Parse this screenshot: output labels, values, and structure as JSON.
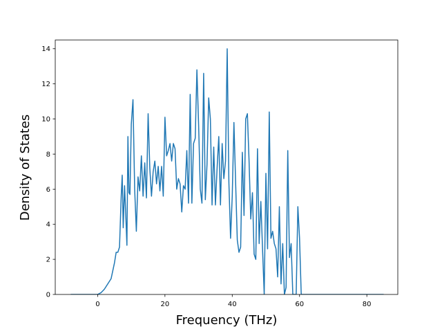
{
  "chart_data": {
    "type": "line",
    "title": "",
    "xlabel": "Frequency (THz)",
    "ylabel": "Density of States",
    "xlim": [
      -12.6,
      89.2
    ],
    "ylim": [
      0,
      14.5
    ],
    "x_ticks": [
      0,
      20,
      40,
      60,
      80
    ],
    "y_ticks": [
      0,
      2,
      4,
      6,
      8,
      10,
      12,
      14
    ],
    "grid": false,
    "legend": "none",
    "series": [
      {
        "color": "#1f77b4",
        "x": [
          -8,
          -4,
          -1,
          0,
          1,
          2,
          3,
          4,
          5,
          5.5,
          6,
          6.5,
          7,
          7.3,
          7.6,
          8,
          8.4,
          8.7,
          9,
          9.3,
          9.6,
          10,
          10.5,
          11,
          11.5,
          12,
          12.5,
          13,
          13.5,
          14,
          14.5,
          15,
          15.5,
          16,
          16.5,
          17,
          17.5,
          18,
          18.5,
          19,
          19.5,
          20,
          20.5,
          21,
          21.5,
          22,
          22.5,
          23,
          23.5,
          24,
          24.5,
          25,
          25.5,
          26,
          26.5,
          27,
          27.5,
          28,
          28.5,
          29,
          29.5,
          30,
          30.5,
          31,
          31.5,
          32,
          32.5,
          33,
          33.5,
          34,
          34.5,
          35,
          35.5,
          36,
          36.5,
          37,
          37.5,
          38,
          38.5,
          39,
          39.5,
          40,
          40.5,
          41,
          41.5,
          42,
          42.5,
          43,
          43.5,
          44,
          44.5,
          45,
          45.5,
          46,
          46.5,
          47,
          47.5,
          48,
          48.5,
          49,
          49.5,
          50,
          50.5,
          51,
          51.5,
          52,
          52.5,
          53,
          53.5,
          54,
          54.5,
          55,
          55.5,
          56,
          56.5,
          57,
          57.5,
          58,
          58.5,
          59,
          59.5,
          60,
          60.5,
          61,
          65,
          75,
          85
        ],
        "y": [
          0,
          0,
          0,
          0,
          0.1,
          0.3,
          0.6,
          0.9,
          1.8,
          2.4,
          2.4,
          2.7,
          5.6,
          6.8,
          3.8,
          6.2,
          4.3,
          2.8,
          9.0,
          5.8,
          5.7,
          9.7,
          11.1,
          6.0,
          3.6,
          6.7,
          5.9,
          7.9,
          5.6,
          7.5,
          5.5,
          10.3,
          7.2,
          5.6,
          7.0,
          7.6,
          6.3,
          7.3,
          5.9,
          7.3,
          5.6,
          10.1,
          7.9,
          8.2,
          8.6,
          7.6,
          8.6,
          8.3,
          6.0,
          6.6,
          6.3,
          4.7,
          6.2,
          6.0,
          8.2,
          5.2,
          11.4,
          5.2,
          8.6,
          8.9,
          12.8,
          9.7,
          6.0,
          5.2,
          12.6,
          5.4,
          7.4,
          11.2,
          10.0,
          5.1,
          8.4,
          5.1,
          7.2,
          9.0,
          5.1,
          8.6,
          6.6,
          7.6,
          14.0,
          6.4,
          3.2,
          5.6,
          9.8,
          6.4,
          3.1,
          2.4,
          2.7,
          8.1,
          4.5,
          10.0,
          10.3,
          7.6,
          4.3,
          5.8,
          2.3,
          2.0,
          8.3,
          2.9,
          5.3,
          2.6,
          0,
          6.9,
          2.6,
          10.4,
          3.2,
          3.6,
          2.9,
          2.6,
          1.0,
          5.0,
          0.6,
          2.9,
          0,
          0.4,
          8.2,
          2.1,
          2.9,
          0,
          0,
          0,
          5.0,
          3.2,
          0,
          0,
          0,
          0,
          0
        ]
      }
    ]
  }
}
